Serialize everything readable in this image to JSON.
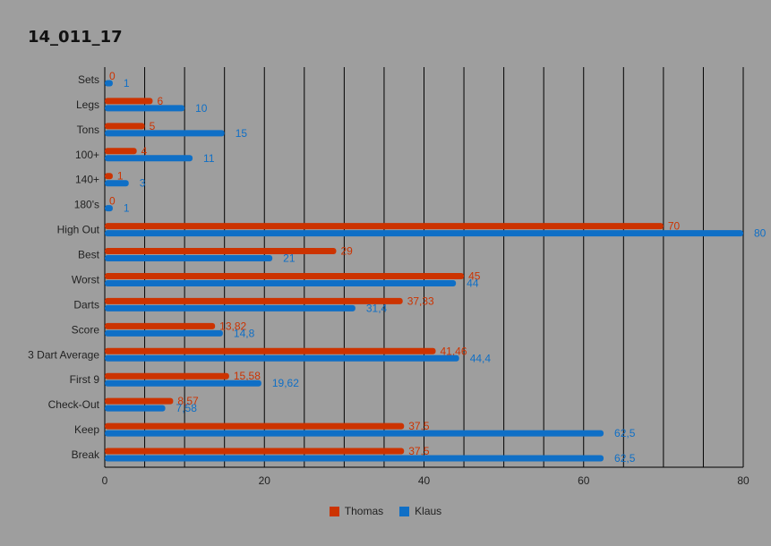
{
  "chart_data": {
    "type": "bar",
    "orientation": "horizontal",
    "title": "14_011_17",
    "xlabel": "",
    "ylabel": "",
    "xlim": [
      0,
      80
    ],
    "x_ticks": [
      0,
      20,
      40,
      60,
      80
    ],
    "grid": true,
    "legend_position": "bottom",
    "categories": [
      "Sets",
      "Legs",
      "Tons",
      "100+",
      "140+",
      "180's",
      "High Out",
      "Best",
      "Worst",
      "Darts",
      "Score",
      "3 Dart Average",
      "First 9",
      "Check-Out",
      "Keep",
      "Break"
    ],
    "series": [
      {
        "name": "Thomas",
        "color": "#cc3300",
        "values": [
          0,
          6,
          5,
          4,
          1,
          0,
          70,
          29,
          45,
          37.33,
          13.82,
          41.46,
          15.58,
          8.57,
          37.5,
          37.5
        ],
        "labels": [
          "0",
          "6",
          "5",
          "4",
          "1",
          "0",
          "70",
          "29",
          "45",
          "37,33",
          "13,82",
          "41,46",
          "15,58",
          "8,57",
          "37,5",
          "37,5"
        ]
      },
      {
        "name": "Klaus",
        "color": "#0f6fc6",
        "values": [
          1,
          10,
          15,
          11,
          3,
          1,
          80,
          21,
          44,
          31.4,
          14.8,
          44.4,
          19.62,
          7.58,
          62.5,
          62.5
        ],
        "labels": [
          "1",
          "10",
          "15",
          "11",
          "3",
          "1",
          "80",
          "21",
          "44",
          "31,4",
          "14,8",
          "44,4",
          "19,62",
          "7,58",
          "62,5",
          "62,5"
        ]
      }
    ]
  }
}
